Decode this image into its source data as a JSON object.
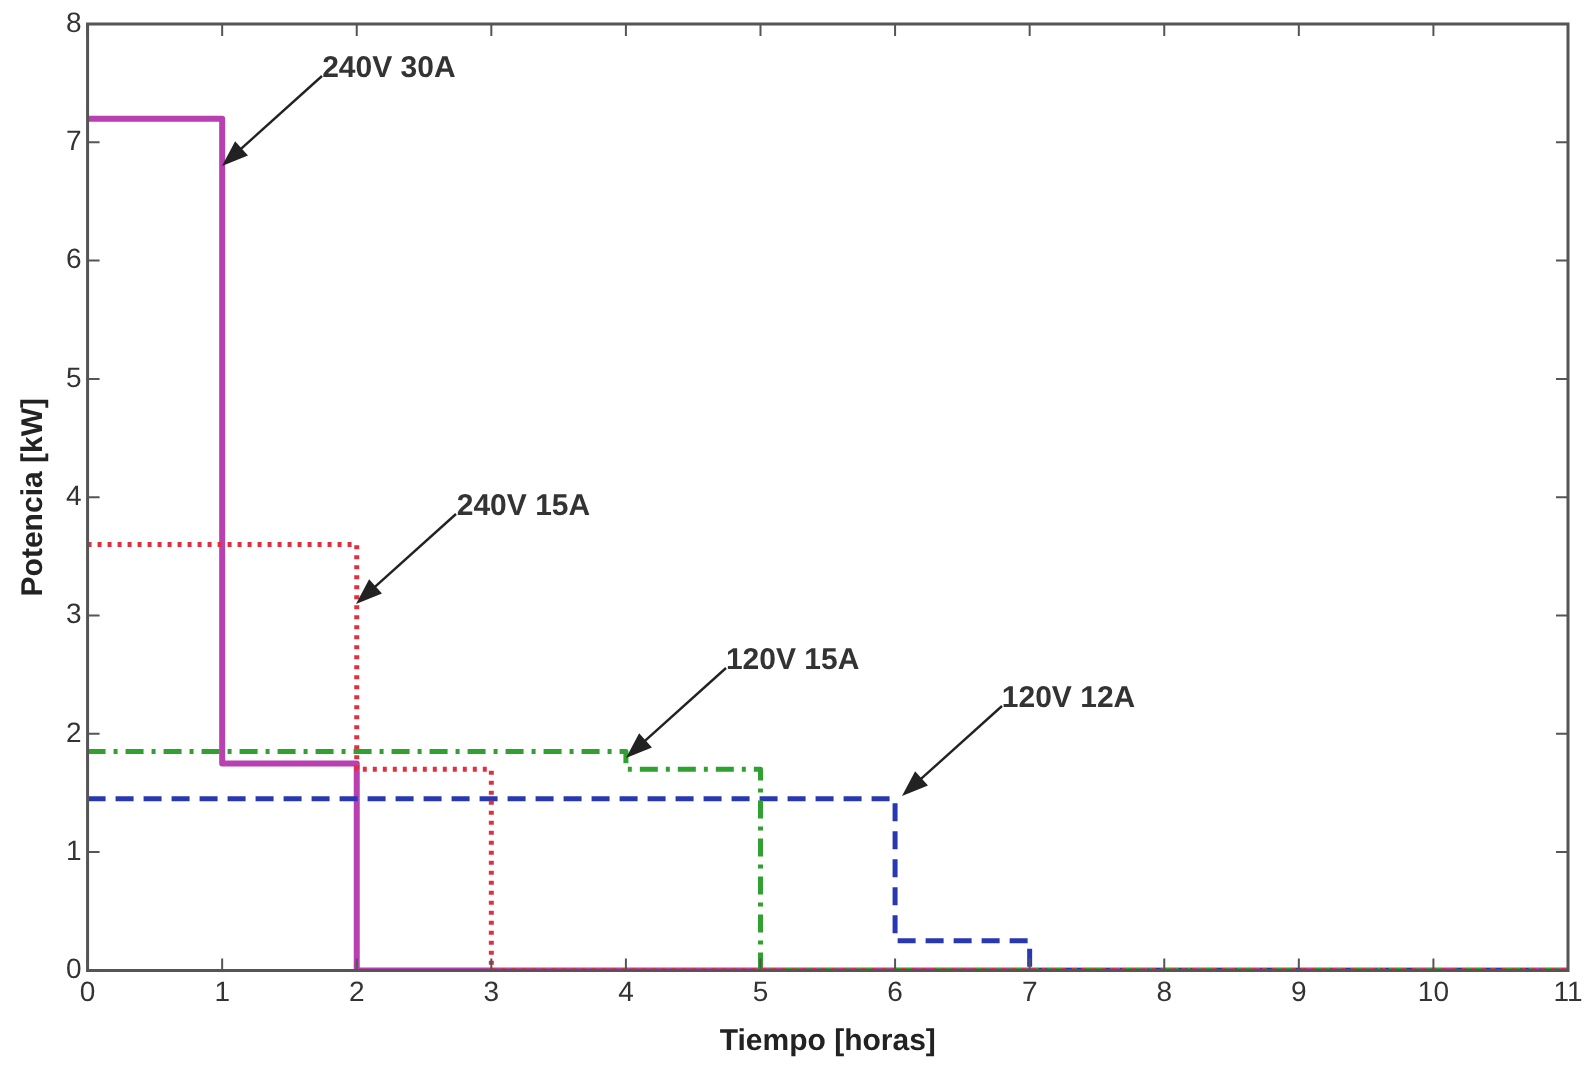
{
  "chart_data": {
    "type": "step",
    "xlabel": "Tiempo [horas]",
    "ylabel": "Potencia [kW]",
    "xlim": [
      0,
      11
    ],
    "xticks": [
      0,
      1,
      2,
      3,
      4,
      5,
      6,
      7,
      8,
      9,
      10,
      11
    ],
    "ylim": [
      0,
      8
    ],
    "yticks": [
      0,
      1,
      2,
      3,
      4,
      5,
      6,
      7,
      8
    ],
    "grid": false,
    "legend": false,
    "marker": "none",
    "series": [
      {
        "color": "#e03040",
        "line_style": "dotted",
        "x": [
          0,
          2,
          3,
          11
        ],
        "values": [
          3.6,
          1.7,
          0,
          0
        ]
      },
      {
        "color": "#30a030",
        "line_style": "dashdot",
        "x": [
          0,
          4,
          5,
          11
        ],
        "values": [
          1.85,
          1.7,
          0,
          0
        ]
      },
      {
        "color": "#2838b0",
        "line_style": "dashed",
        "x": [
          0,
          6,
          7,
          11
        ],
        "values": [
          1.45,
          0.25,
          0,
          0
        ]
      },
      {
        "color": "#b840b0",
        "line_style": "solid",
        "x": [
          0,
          1,
          2,
          11
        ],
        "values": [
          7.2,
          1.75,
          0,
          0
        ]
      }
    ],
    "annotations": [
      {
        "text": "240V 30A",
        "x": 1,
        "y": 6.8
      },
      {
        "text": "240V 15A",
        "x": 2,
        "y": 3.1
      },
      {
        "text": "120V 15A",
        "x": 4,
        "y": 1.8
      },
      {
        "text": "120V 12A",
        "x": 6.05,
        "y": 1.48
      }
    ]
  }
}
